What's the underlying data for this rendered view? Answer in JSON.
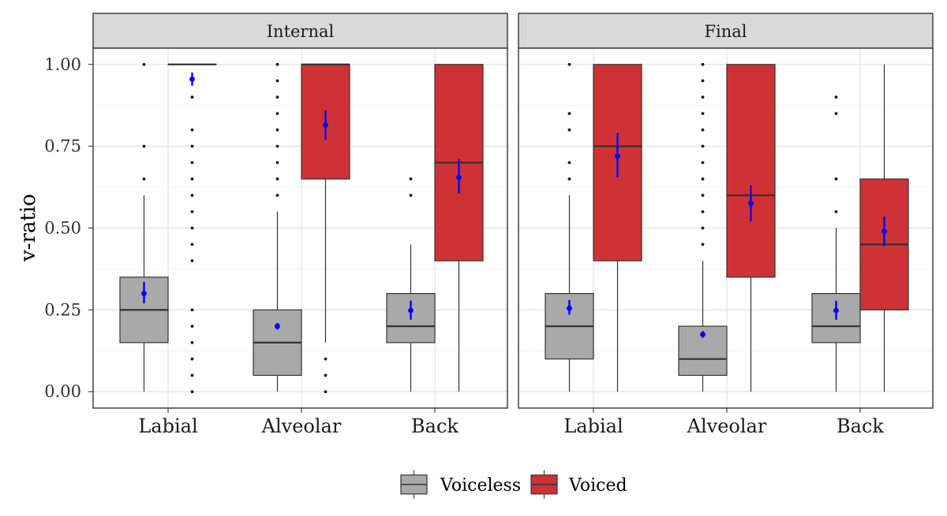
{
  "chart_data": {
    "type": "boxplot",
    "ylabel": "v-ratio",
    "xlabel": "",
    "ylim": [
      -0.05,
      1.05
    ],
    "yticks": [
      0.0,
      0.25,
      0.5,
      0.75,
      1.0
    ],
    "ytick_labels": [
      "0.00",
      "0.25",
      "0.50",
      "0.75",
      "1.00"
    ],
    "categories": [
      "Labial",
      "Alveolar",
      "Back"
    ],
    "grid": true,
    "legend": {
      "position": "bottom",
      "items": [
        {
          "name": "Voiceless",
          "color": "#a9a9a9"
        },
        {
          "name": "Voiced",
          "color": "#cf3234"
        }
      ]
    },
    "colors": {
      "Voiceless": "#a9a9a9",
      "Voiced": "#cf3234",
      "mean": "#0000ff"
    },
    "panels": [
      {
        "title": "Internal",
        "boxes": [
          {
            "category": "Labial",
            "series": "Voiceless",
            "min": 0.0,
            "q1": 0.15,
            "median": 0.25,
            "q3": 0.35,
            "max": 0.6,
            "outliers": [
              0.65,
              0.75,
              1.0
            ],
            "mean": 0.3,
            "mean_lo": 0.27,
            "mean_hi": 0.335
          },
          {
            "category": "Labial",
            "series": "Voiced",
            "min": 1.0,
            "q1": 1.0,
            "median": 1.0,
            "q3": 1.0,
            "max": 1.0,
            "outliers": [
              0.0,
              0.05,
              0.1,
              0.15,
              0.2,
              0.25,
              0.4,
              0.45,
              0.5,
              0.55,
              0.6,
              0.65,
              0.7,
              0.75,
              0.8,
              0.9
            ],
            "mean": 0.955,
            "mean_lo": 0.935,
            "mean_hi": 0.975
          },
          {
            "category": "Alveolar",
            "series": "Voiceless",
            "min": 0.0,
            "q1": 0.05,
            "median": 0.15,
            "q3": 0.25,
            "max": 0.55,
            "outliers": [
              0.6,
              0.65,
              0.7,
              0.75,
              0.8,
              0.85,
              0.9,
              0.95,
              1.0
            ],
            "mean": 0.2,
            "mean_lo": 0.19,
            "mean_hi": 0.21
          },
          {
            "category": "Alveolar",
            "series": "Voiced",
            "min": 0.15,
            "q1": 0.65,
            "median": 1.0,
            "q3": 1.0,
            "max": 1.0,
            "outliers": [
              0.0,
              0.05,
              0.1
            ],
            "mean": 0.815,
            "mean_lo": 0.77,
            "mean_hi": 0.86
          },
          {
            "category": "Back",
            "series": "Voiceless",
            "min": 0.0,
            "q1": 0.15,
            "median": 0.2,
            "q3": 0.3,
            "max": 0.45,
            "outliers": [
              0.6,
              0.65
            ],
            "mean": 0.248,
            "mean_lo": 0.22,
            "mean_hi": 0.278
          },
          {
            "category": "Back",
            "series": "Voiced",
            "min": 0.0,
            "q1": 0.4,
            "median": 0.7,
            "q3": 1.0,
            "max": 1.0,
            "outliers": [],
            "mean": 0.655,
            "mean_lo": 0.605,
            "mean_hi": 0.71
          }
        ]
      },
      {
        "title": "Final",
        "boxes": [
          {
            "category": "Labial",
            "series": "Voiceless",
            "min": 0.0,
            "q1": 0.1,
            "median": 0.2,
            "q3": 0.3,
            "max": 0.6,
            "outliers": [
              0.65,
              0.7,
              0.8,
              0.85,
              1.0
            ],
            "mean": 0.255,
            "mean_lo": 0.235,
            "mean_hi": 0.28
          },
          {
            "category": "Labial",
            "series": "Voiced",
            "min": 0.0,
            "q1": 0.4,
            "median": 0.75,
            "q3": 1.0,
            "max": 1.0,
            "outliers": [],
            "mean": 0.72,
            "mean_lo": 0.655,
            "mean_hi": 0.79
          },
          {
            "category": "Alveolar",
            "series": "Voiceless",
            "min": 0.0,
            "q1": 0.05,
            "median": 0.1,
            "q3": 0.2,
            "max": 0.4,
            "outliers": [
              0.45,
              0.5,
              0.55,
              0.6,
              0.65,
              0.7,
              0.75,
              0.8,
              0.85,
              0.9,
              0.95,
              1.0
            ],
            "mean": 0.175,
            "mean_lo": 0.165,
            "mean_hi": 0.185
          },
          {
            "category": "Alveolar",
            "series": "Voiced",
            "min": 0.0,
            "q1": 0.35,
            "median": 0.6,
            "q3": 1.0,
            "max": 1.0,
            "outliers": [],
            "mean": 0.575,
            "mean_lo": 0.52,
            "mean_hi": 0.63
          },
          {
            "category": "Back",
            "series": "Voiceless",
            "min": 0.0,
            "q1": 0.15,
            "median": 0.2,
            "q3": 0.3,
            "max": 0.5,
            "outliers": [
              0.55,
              0.65,
              0.85,
              0.9
            ],
            "mean": 0.248,
            "mean_lo": 0.22,
            "mean_hi": 0.278
          },
          {
            "category": "Back",
            "series": "Voiced",
            "min": 0.0,
            "q1": 0.25,
            "median": 0.45,
            "q3": 0.65,
            "max": 1.0,
            "outliers": [],
            "mean": 0.49,
            "mean_lo": 0.445,
            "mean_hi": 0.535
          }
        ]
      }
    ]
  }
}
